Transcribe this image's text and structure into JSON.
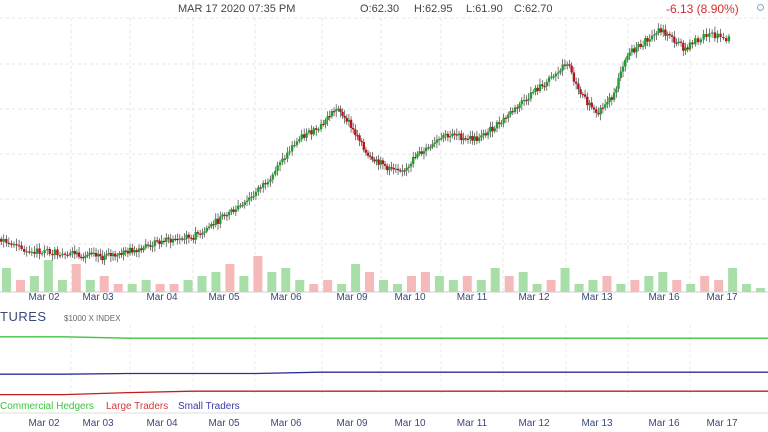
{
  "header": {
    "datetime": "MAR 17 2020 07:35 PM",
    "open": "O:62.30",
    "high": "H:62.95",
    "low": "L:61.90",
    "close": "C:62.70",
    "change": "-6.13 (8.90%)"
  },
  "cot_panel": {
    "title": "TURES",
    "subtitle": "$1000 X INDEX",
    "legend": [
      {
        "label": "Commercial Hedgers",
        "color": "#3cc43c"
      },
      {
        "label": "Large Traders",
        "color": "#d23a3a"
      },
      {
        "label": "Small Traders",
        "color": "#3a3aa8"
      }
    ]
  },
  "chart_data": {
    "type": "candlestick",
    "x_labels": [
      "Mar 02",
      "Mar 03",
      "Mar 04",
      "Mar 05",
      "Mar 06",
      "Mar 09",
      "Mar 10",
      "Mar 11",
      "Mar 12",
      "Mar 13",
      "Mar 16",
      "Mar 17"
    ],
    "price_path": [
      [
        0,
        0.1
      ],
      [
        0.3,
        0.05
      ],
      [
        1,
        0.04
      ],
      [
        1.5,
        0.02
      ],
      [
        2,
        0.05
      ],
      [
        2.5,
        0.09
      ],
      [
        3,
        0.11
      ],
      [
        3.5,
        0.2
      ],
      [
        4,
        0.3
      ],
      [
        4.3,
        0.4
      ],
      [
        4.6,
        0.52
      ],
      [
        5.0,
        0.6
      ],
      [
        5.2,
        0.66
      ],
      [
        5.4,
        0.62
      ],
      [
        5.7,
        0.48
      ],
      [
        6,
        0.42
      ],
      [
        6.3,
        0.38
      ],
      [
        6.5,
        0.44
      ],
      [
        7.0,
        0.55
      ],
      [
        7.6,
        0.53
      ],
      [
        8.0,
        0.62
      ],
      [
        8.4,
        0.72
      ],
      [
        8.8,
        0.8
      ],
      [
        9.0,
        0.86
      ],
      [
        9.2,
        0.72
      ],
      [
        9.5,
        0.65
      ],
      [
        9.7,
        0.7
      ],
      [
        10,
        0.9
      ],
      [
        10.5,
        1.0
      ],
      [
        10.9,
        0.92
      ],
      [
        11.2,
        0.98
      ],
      [
        11.5,
        0.96
      ]
    ],
    "volume_levels": [
      0.6,
      0.3,
      0.4,
      0.8,
      0.3,
      0.7,
      0.3,
      0.4,
      0.2,
      0.2,
      0.3,
      0.2,
      0.2,
      0.3,
      0.4,
      0.5,
      0.7,
      0.4,
      0.9,
      0.5,
      0.6,
      0.3,
      0.2,
      0.3,
      0.2,
      0.7,
      0.5,
      0.3,
      0.2,
      0.4,
      0.5,
      0.4,
      0.3,
      0.4,
      0.3,
      0.6,
      0.4,
      0.5,
      0.2,
      0.3,
      0.6,
      0.2,
      0.3,
      0.4,
      0.2,
      0.3,
      0.4,
      0.5,
      0.3,
      0.2,
      0.4,
      0.3,
      0.6,
      0.2,
      0.1
    ],
    "cot_lines": [
      {
        "name": "Commercial Hedgers",
        "levels": [
          0.9,
          0.9,
          0.88,
          0.88,
          0.88,
          0.88,
          0.88,
          0.88,
          0.88,
          0.88,
          0.88,
          0.88,
          0.88
        ]
      },
      {
        "name": "Small Traders",
        "levels": [
          0.35,
          0.35,
          0.36,
          0.36,
          0.36,
          0.38,
          0.38,
          0.38,
          0.38,
          0.38,
          0.38,
          0.38,
          0.38
        ]
      },
      {
        "name": "Large Traders",
        "levels": [
          0.05,
          0.05,
          0.08,
          0.1,
          0.1,
          0.1,
          0.1,
          0.1,
          0.1,
          0.1,
          0.1,
          0.1,
          0.1
        ]
      }
    ]
  }
}
